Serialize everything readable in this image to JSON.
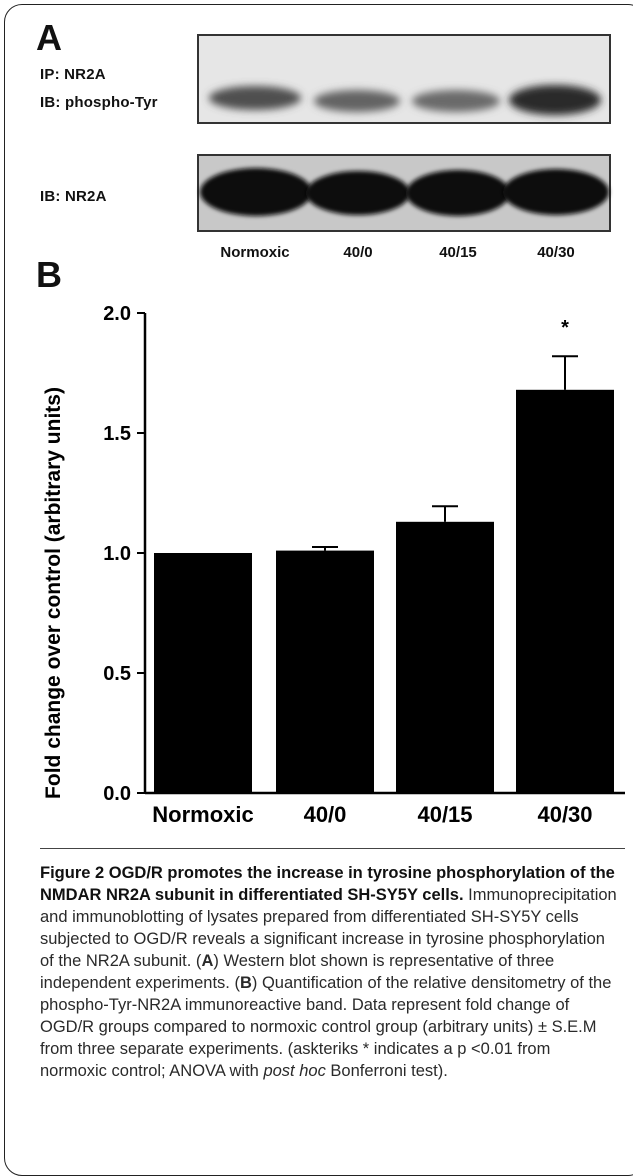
{
  "panel_a": {
    "letter": "A",
    "blot_labels": {
      "ip": "IP: NR2A",
      "ib_phospho": "IB: phospho-Tyr",
      "ib_total": "IB: NR2A"
    },
    "lane_labels": [
      "Normoxic",
      "40/0",
      "40/15",
      "40/30"
    ]
  },
  "panel_b": {
    "letter": "B",
    "significance_mark": "*"
  },
  "chart_data": {
    "type": "bar",
    "categories": [
      "Normoxic",
      "40/0",
      "40/15",
      "40/30"
    ],
    "values": [
      1.0,
      1.01,
      1.13,
      1.68
    ],
    "errors": [
      0.0,
      0.015,
      0.065,
      0.14
    ],
    "ylabel": "Fold change over control (arbitrary units)",
    "xlabel": "",
    "ylim": [
      0.0,
      2.0
    ],
    "yticks": [
      "0.0",
      "0.5",
      "1.0",
      "1.5",
      "2.0"
    ],
    "grid": false,
    "annotations": [
      {
        "category": "40/30",
        "text": "*"
      }
    ],
    "bar_color": "#000000"
  },
  "caption": {
    "title": "Figure 2 OGD/R promotes the increase in tyrosine phosphorylation of the NMDAR NR2A subunit in differentiated SH-SY5Y cells.",
    "body_1": " Immunoprecipitation and immunoblotting of lysates prepared from differentiated SH-SY5Y cells subjected to OGD/R reveals a significant increase in tyrosine phosphorylation of the NR2A subunit. (",
    "ref_a": "A",
    "body_2": ") Western blot shown is representative of three independent experiments. (",
    "ref_b": "B",
    "body_3": ") Quantification of the relative densitometry of the phospho-Tyr-NR2A immunoreactive band. Data represent fold change of OGD/R groups compared to normoxic control group (arbitrary units) ± S.E.M from three separate experiments. (askteriks * indicates a p <0.01 from normoxic control; ANOVA with ",
    "italic": "post hoc",
    "body_4": " Bonferroni test)."
  }
}
